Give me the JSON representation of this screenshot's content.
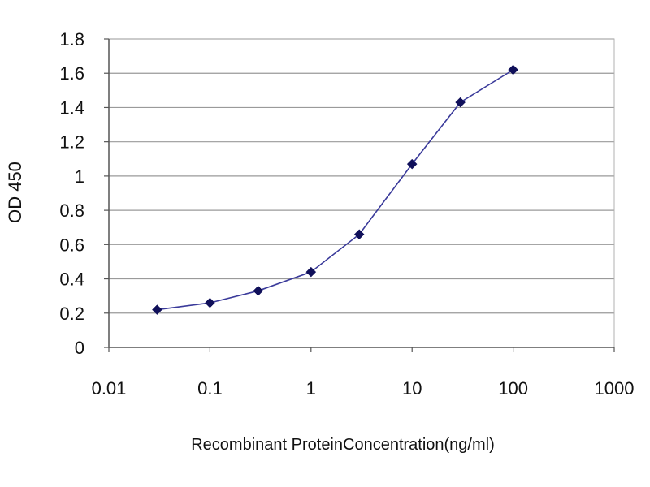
{
  "chart_data": {
    "type": "line",
    "title": "",
    "xlabel": "Recombinant ProteinConcentration(ng/ml)",
    "ylabel": "OD 450",
    "x_scale": "log",
    "xlim": [
      0.01,
      1000
    ],
    "ylim": [
      0,
      1.8
    ],
    "x_ticks": [
      0.01,
      0.1,
      1,
      10,
      100,
      1000
    ],
    "x_tick_labels": [
      "0.01",
      "0.1",
      "1",
      "10",
      "100",
      "1000"
    ],
    "y_ticks": [
      0,
      0.2,
      0.4,
      0.6,
      0.8,
      1,
      1.2,
      1.4,
      1.6,
      1.8
    ],
    "y_tick_labels": [
      "0",
      "0.2",
      "0.4",
      "0.6",
      "0.8",
      "1",
      "1.2",
      "1.4",
      "1.6",
      "1.8"
    ],
    "grid": "horizontal",
    "legend": "none",
    "series": [
      {
        "x": [
          0.03,
          0.1,
          0.3,
          1,
          3,
          10,
          30,
          100
        ],
        "y": [
          0.22,
          0.26,
          0.33,
          0.44,
          0.66,
          1.07,
          1.43,
          1.62
        ],
        "color": "#3a3a9a",
        "marker": "diamond",
        "marker_color": "#10105a"
      }
    ],
    "colors": {
      "gridline": "#9a9a9a",
      "axis": "#555555",
      "text": "#111111"
    }
  }
}
